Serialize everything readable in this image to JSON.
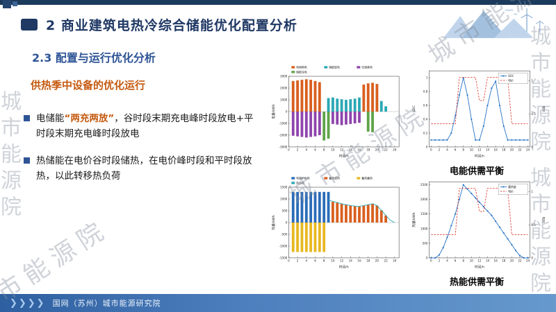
{
  "slide": {
    "title": "2 商业建筑电热冷综合储能优化配置分析",
    "section_title": "2.3 配置与运行优化分析",
    "subtitle": "供热季中设备的优化运行",
    "bullet1_pre": "电储能",
    "bullet1_highlight": "“两充两放”",
    "bullet1_post": "，谷时段末期充电峰时段放电+平时段末期充电峰时段放电",
    "bullet2": "热储能在电价谷时段储热，在电价峰时段和平时段放热，以此转移热负荷",
    "caption_electric": "电能供需平衡",
    "caption_heat": "热能供需平衡",
    "footer_chevrons": "❯❯❯❯",
    "footer_org": "国网（苏州）城市能源研究院",
    "watermark_text": "城市能源院"
  },
  "colors": {
    "title_navy": "#1F3864",
    "section_blue": "#2E5496",
    "accent_orange": "#C55A11",
    "footer_blue": "#3465A4",
    "bar_orange": "#D95F1E",
    "bar_teal": "#2AA8B5",
    "bar_purple": "#8E44AD",
    "bar_green": "#5FA348",
    "bar_blue": "#2B6CB8",
    "bar_yellow": "#E8B820",
    "line_blue": "#1F6FC4",
    "line_red": "#E03A2F"
  },
  "chart_data": [
    {
      "name": "electric-dispatch",
      "type": "bar",
      "xlabel": "时间/h",
      "ylabel": "电量/kWh",
      "xdomain": [
        0,
        25
      ],
      "ylim": [
        -3000,
        3000
      ],
      "yticks": [
        -3000,
        -2000,
        -1000,
        0,
        1000,
        2000,
        3000
      ],
      "legend": "top",
      "series": [
        {
          "name": "电网购电",
          "color": "#D95F1E",
          "draw": "bar",
          "values": [
            2600,
            2650,
            2700,
            2750,
            2700,
            2600,
            2500,
            0,
            0,
            0,
            0,
            0,
            0,
            0,
            0,
            0,
            2300,
            2400,
            2450,
            2350,
            0,
            0,
            0,
            0
          ]
        },
        {
          "name": "储能放电",
          "color": "#2AA8B5",
          "draw": "bar",
          "values": [
            0,
            0,
            0,
            0,
            0,
            0,
            0,
            0,
            1150,
            1200,
            1100,
            1050,
            1000,
            1050,
            1100,
            1200,
            0,
            0,
            0,
            0,
            900,
            450,
            0,
            0
          ]
        },
        {
          "name": "空调耗电",
          "color": "#8E44AD",
          "draw": "bar",
          "values": [
            -2050,
            -2100,
            -2150,
            -2200,
            -2150,
            -2100,
            -2000,
            0,
            0,
            -1050,
            -1100,
            -1150,
            -1100,
            -1050,
            -1000,
            -950,
            0,
            0,
            0,
            0,
            0,
            0,
            0,
            0
          ]
        },
        {
          "name": "储能充电",
          "color": "#5FA348",
          "draw": "bar",
          "values": [
            0,
            0,
            0,
            0,
            0,
            0,
            0,
            -2450,
            -2300,
            0,
            0,
            0,
            0,
            0,
            0,
            0,
            0,
            -1700,
            -1750,
            0,
            0,
            0,
            0,
            0
          ]
        }
      ]
    },
    {
      "name": "soc-curve",
      "type": "line",
      "xlabel": "时间/h",
      "ylabel": "SOC",
      "y2label": "电价",
      "xdomain": [
        -0.5,
        24.5
      ],
      "ylim": [
        0,
        1.1
      ],
      "y2lim": [
        0,
        1.15
      ],
      "yticks": [
        0,
        0.2,
        0.4,
        0.6,
        0.8,
        1
      ],
      "y2ticks": [
        0,
        0.5,
        1
      ],
      "legend": "box",
      "series": [
        {
          "name": "SOC",
          "color": "#1F6FC4",
          "marker": true,
          "values": [
            0.1,
            0.1,
            0.1,
            0.1,
            0.1,
            0.2,
            0.45,
            0.75,
            1,
            0.75,
            0.4,
            0.1,
            0.1,
            0.3,
            0.6,
            0.85,
            0.95,
            0.6,
            0.3,
            0.1,
            0.1,
            0.1,
            0.1,
            0.1,
            0.1
          ]
        },
        {
          "name": "电价",
          "color": "#E03A2F",
          "style": "dashed",
          "axis": "y2",
          "values": [
            0.35,
            0.35,
            0.35,
            0.35,
            0.35,
            0.35,
            0.35,
            1.05,
            1.05,
            1.05,
            1.05,
            1.05,
            0.7,
            0.7,
            1.05,
            1.05,
            1.05,
            1.05,
            1.05,
            1.05,
            0.35,
            0.35,
            0.35,
            0.35,
            0.35
          ]
        }
      ]
    },
    {
      "name": "heat-dispatch",
      "type": "bar",
      "xlabel": "时间/h",
      "ylabel": "热量/kWh",
      "xdomain": [
        0,
        25
      ],
      "ylim": [
        -1500,
        1500
      ],
      "yticks": [
        -1500,
        -1000,
        -500,
        0,
        500,
        1000,
        1500
      ],
      "legend": "top",
      "series": [
        {
          "name": "电锅炉供热",
          "color": "#2B6CB8",
          "draw": "bar",
          "values": [
            1300,
            1300,
            1300,
            1300,
            1300,
            1300,
            1300,
            1300,
            1300,
            0,
            0,
            0,
            0,
            0,
            0,
            0,
            0,
            0,
            0,
            0,
            0,
            0,
            0,
            0
          ]
        },
        {
          "name": "蓄热放热",
          "color": "#D95F1E",
          "draw": "bar",
          "values": [
            0,
            0,
            0,
            0,
            0,
            0,
            0,
            0,
            0,
            880,
            840,
            800,
            760,
            720,
            690,
            680,
            720,
            760,
            800,
            720,
            520,
            300,
            0,
            0
          ]
        },
        {
          "name": "蓄热蓄热",
          "color": "#E8B820",
          "draw": "bar",
          "values": [
            -1250,
            -1250,
            -1250,
            -1250,
            -1250,
            -1250,
            -1250,
            -1250,
            0,
            0,
            0,
            0,
            0,
            0,
            0,
            0,
            0,
            0,
            0,
            0,
            0,
            0,
            0,
            0
          ]
        },
        {
          "name": "热负荷",
          "color": "#2AA8B5",
          "draw": "line",
          "x0": 1,
          "values": [
            null,
            null,
            null,
            null,
            null,
            null,
            null,
            null,
            950,
            900,
            850,
            800,
            760,
            720,
            700,
            690,
            720,
            760,
            800,
            720,
            520,
            300,
            100,
            0
          ]
        }
      ]
    },
    {
      "name": "heat-storage-curve",
      "type": "line",
      "xlabel": "时间/h",
      "ylabel": "热量/kWh",
      "y2label": "电价",
      "xdomain": [
        -0.5,
        24.5
      ],
      "ylim": [
        0,
        2600
      ],
      "y2lim": [
        0,
        1.15
      ],
      "yticks": [
        0,
        500,
        1000,
        1500,
        2000,
        2500
      ],
      "y2ticks": [
        0,
        0.5,
        1
      ],
      "legend": "box",
      "series": [
        {
          "name": "蓄热量",
          "color": "#1F6FC4",
          "marker": true,
          "values": [
            0,
            0,
            100,
            350,
            700,
            1100,
            1500,
            2000,
            2500,
            2350,
            2200,
            2050,
            1900,
            1750,
            1600,
            1450,
            1250,
            1050,
            850,
            650,
            450,
            250,
            80,
            0,
            0
          ]
        },
        {
          "name": "电价",
          "color": "#E03A2F",
          "style": "dashed",
          "axis": "y2",
          "values": [
            0.35,
            0.35,
            0.35,
            0.35,
            0.35,
            0.35,
            0.35,
            1.05,
            1.05,
            1.05,
            1.05,
            1.05,
            0.7,
            0.7,
            1.05,
            1.05,
            1.05,
            1.05,
            1.05,
            1.05,
            0.35,
            0.35,
            0.35,
            0.35,
            0.35
          ]
        }
      ]
    }
  ]
}
